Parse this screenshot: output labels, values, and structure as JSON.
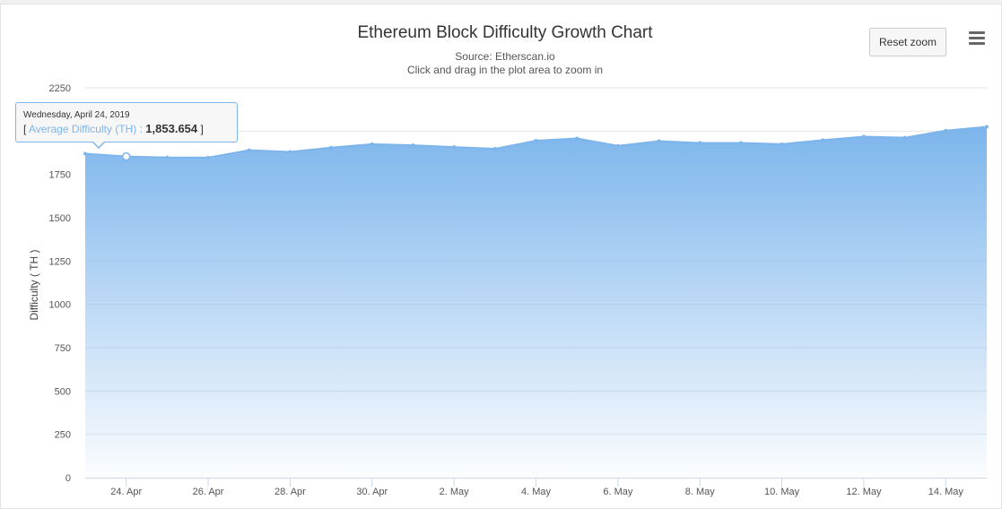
{
  "chart_data": {
    "type": "area",
    "title": "Ethereum Block Difficulty Growth Chart",
    "subtitle": "Source: Etherscan.io",
    "zoom_hint": "Click and drag in the plot area to zoom in",
    "xlabel": "",
    "ylabel": "Difficulty ( TH )",
    "ylim": [
      0,
      2250
    ],
    "yticks": [
      0,
      250,
      500,
      750,
      1000,
      1250,
      1500,
      1750,
      2000,
      2250
    ],
    "ytick_labels": [
      "0",
      "250",
      "500",
      "750",
      "1000",
      "1250",
      "1500",
      "1750",
      "",
      "2250"
    ],
    "x_tick_labels": [
      "24. Apr",
      "26. Apr",
      "28. Apr",
      "30. Apr",
      "2. May",
      "4. May",
      "6. May",
      "8. May",
      "10. May",
      "12. May",
      "14. May"
    ],
    "grid": true,
    "series": [
      {
        "name": "Average Difficulty (TH)",
        "color": "#7cb5ec",
        "x": [
          "2019-04-23",
          "2019-04-24",
          "2019-04-25",
          "2019-04-26",
          "2019-04-27",
          "2019-04-28",
          "2019-04-29",
          "2019-04-30",
          "2019-05-01",
          "2019-05-02",
          "2019-05-03",
          "2019-05-04",
          "2019-05-05",
          "2019-05-06",
          "2019-05-07",
          "2019-05-08",
          "2019-05-09",
          "2019-05-10",
          "2019-05-11",
          "2019-05-12",
          "2019-05-13",
          "2019-05-14",
          "2019-05-15"
        ],
        "values": [
          1870,
          1853.654,
          1848,
          1847,
          1890,
          1880,
          1905,
          1925,
          1918,
          1908,
          1898,
          1945,
          1958,
          1915,
          1942,
          1932,
          1932,
          1925,
          1948,
          1968,
          1962,
          2003,
          2025
        ]
      }
    ]
  },
  "tooltip": {
    "date": "Wednesday, April 24, 2019",
    "open_bracket": "[",
    "series_label": "Average Difficulty (TH) :",
    "value": "1,853.654",
    "close_bracket": "]"
  },
  "controls": {
    "reset_zoom_label": "Reset zoom",
    "menu_icon": "hamburger-menu-icon"
  }
}
